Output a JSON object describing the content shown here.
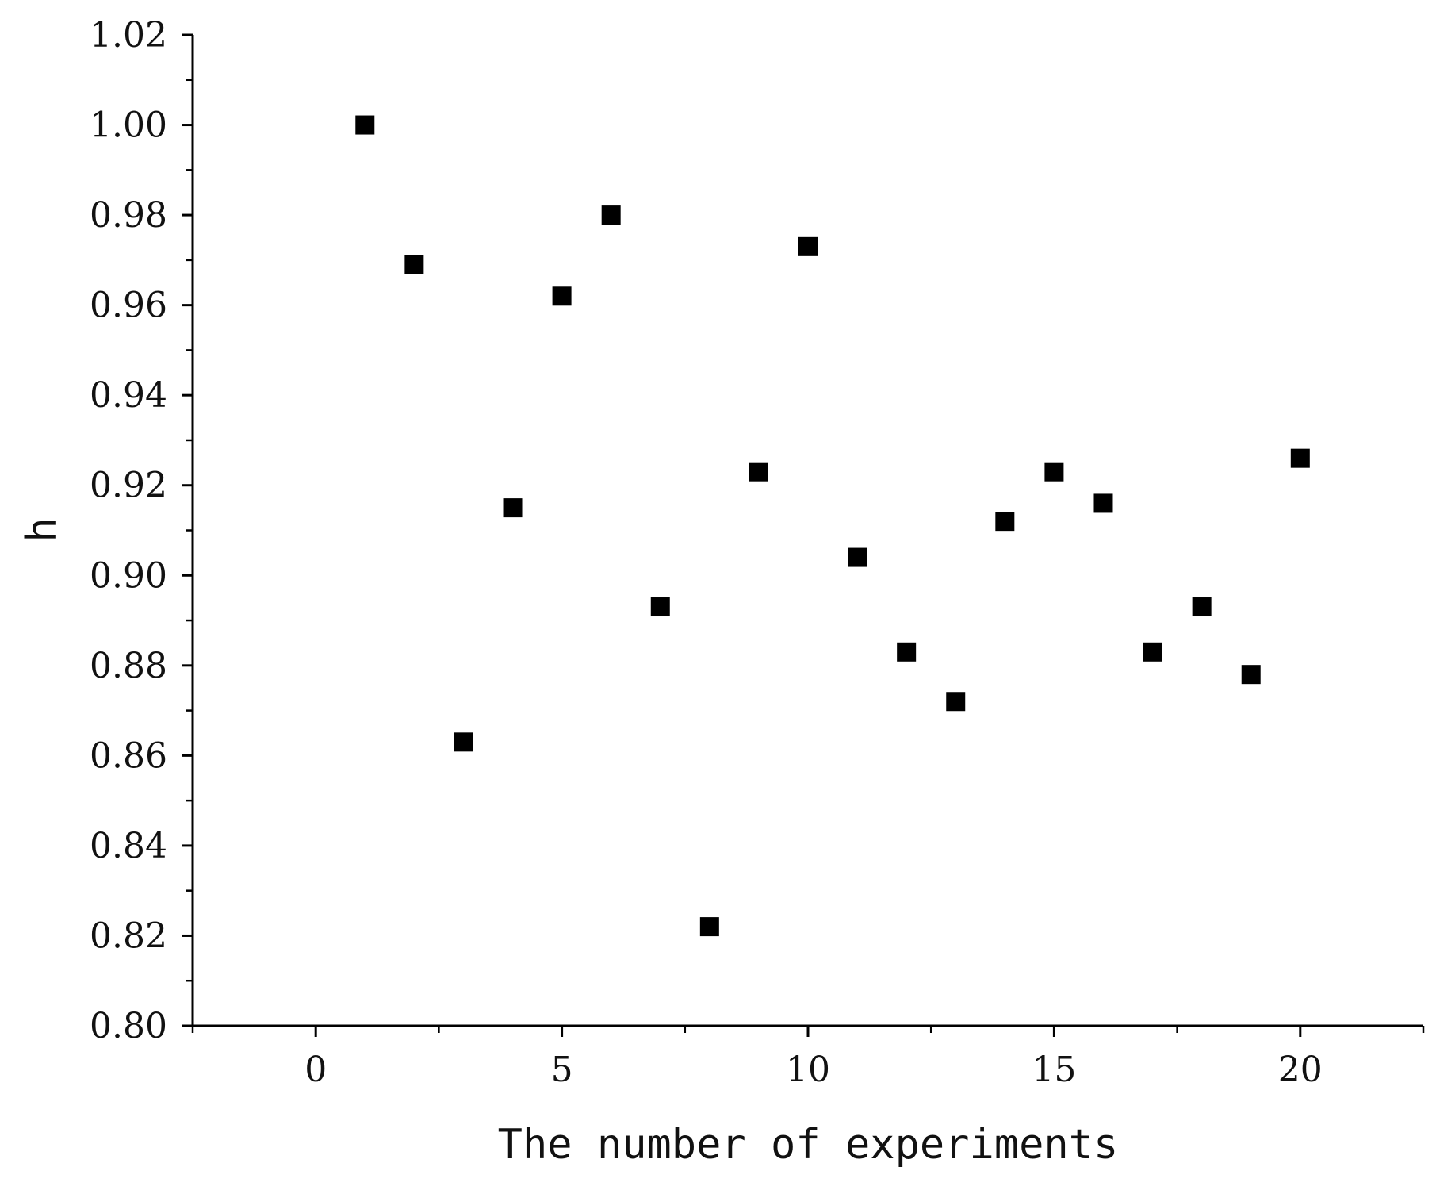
{
  "chart_data": {
    "type": "scatter",
    "title": "",
    "xlabel": "The number of experiments",
    "ylabel": "h",
    "xlim": [
      -2.5,
      22.5
    ],
    "ylim": [
      0.8,
      1.02
    ],
    "x_ticks": [
      0,
      5,
      10,
      15,
      20
    ],
    "x_tick_labels": [
      "0",
      "5",
      "10",
      "15",
      "20"
    ],
    "y_ticks": [
      0.8,
      0.82,
      0.84,
      0.86,
      0.88,
      0.9,
      0.92,
      0.94,
      0.96,
      0.98,
      1.0,
      1.02
    ],
    "y_tick_labels": [
      "0.80",
      "0.82",
      "0.84",
      "0.86",
      "0.88",
      "0.90",
      "0.92",
      "0.94",
      "0.96",
      "0.98",
      "1.00",
      "1.02"
    ],
    "grid": false,
    "marker": "square",
    "marker_color": "#000000",
    "series": [
      {
        "x": [
          1,
          2,
          3,
          4,
          5,
          6,
          7,
          8,
          9,
          10,
          11,
          12,
          13,
          14,
          15,
          16,
          17,
          18,
          19,
          20
        ],
        "y": [
          1.0,
          0.969,
          0.863,
          0.915,
          0.962,
          0.98,
          0.893,
          0.822,
          0.923,
          0.973,
          0.904,
          0.883,
          0.872,
          0.912,
          0.923,
          0.916,
          0.883,
          0.893,
          0.878,
          0.926
        ]
      }
    ]
  }
}
